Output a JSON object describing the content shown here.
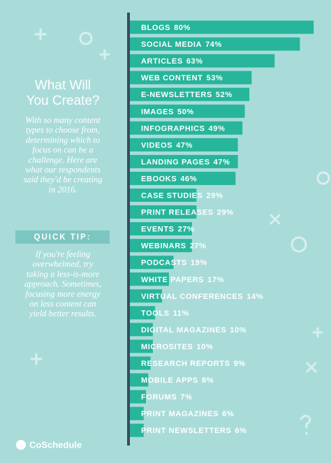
{
  "sidebar": {
    "title_lines": [
      "What Will",
      "You Create?"
    ],
    "intro_lines": [
      "With so many content",
      "types to choose from,",
      "determining which to",
      "focus on can be a",
      "challenge. Here are",
      "what our respondents",
      "said they'd be creating",
      "in 2016."
    ],
    "tip_heading": "QUICK TIP:",
    "tip_lines": [
      "If you're feeling",
      "overwhelmed, try",
      "taking a less-is-more",
      "approach. Sometimes,",
      "focusing more energy",
      "on less content can",
      "yield better results."
    ],
    "brand": "CoSchedule"
  },
  "chart_data": {
    "type": "bar",
    "orientation": "horizontal",
    "color": "#27b59b",
    "categories": [
      "BLOGS",
      "SOCIAL MEDIA",
      "ARTICLES",
      "WEB CONTENT",
      "E-NEWSLETTERS",
      "IMAGES",
      "INFOGRAPHICS",
      "VIDEOS",
      "LANDING PAGES",
      "EBOOKS",
      "CASE STUDIES",
      "PRINT RELEASES",
      "EVENTS",
      "WEBINARS",
      "PODCASTS",
      "WHITE PAPERS",
      "VIRTUAL CONFERENCES",
      "TOOLS",
      "DIGITAL MAGAZINES",
      "MICROSITES",
      "RESEARCH REPORTS",
      "MOBILE APPS",
      "FORUMS",
      "PRINT MAGAZINES",
      "PRINT NEWSLETTERS"
    ],
    "values": [
      80,
      74,
      63,
      53,
      52,
      50,
      49,
      47,
      47,
      46,
      29,
      29,
      27,
      27,
      19,
      17,
      14,
      11,
      10,
      10,
      9,
      8,
      7,
      6,
      6
    ],
    "value_labels": [
      "80%",
      "74%",
      "63%",
      "53%",
      "52%",
      "50%",
      "49%",
      "47%",
      "47%",
      "46%",
      "29%",
      "29%",
      "27%",
      "27%",
      "19%",
      "17%",
      "14%",
      "11%",
      "10%",
      "10%",
      "9%",
      "8%",
      "7%",
      "6%",
      "6%"
    ]
  }
}
